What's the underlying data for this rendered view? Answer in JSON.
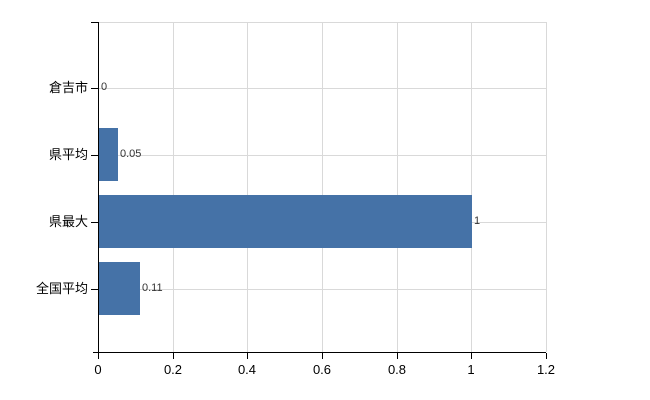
{
  "chart_data": {
    "type": "bar",
    "orientation": "horizontal",
    "title": "",
    "categories": [
      "倉吉市",
      "県平均",
      "県最大",
      "全国平均"
    ],
    "values": [
      0,
      0.05,
      1,
      0.11
    ],
    "value_labels": [
      "0",
      "0.05",
      "1",
      "0.11"
    ],
    "xlim": [
      0,
      1.2
    ],
    "x_ticks": [
      0,
      0.2,
      0.4,
      0.6,
      0.8,
      1,
      1.2
    ],
    "x_tick_labels": [
      "0",
      "0.2",
      "0.4",
      "0.6",
      "0.8",
      "1",
      "1.2"
    ],
    "grid": true,
    "legend": false,
    "colors": {
      "bar": "#4572a7",
      "grid": "#d9d9d9",
      "axis": "#000000",
      "plot_border": "#d9d9d9",
      "category_text": "#000000",
      "value_text": "#333333",
      "background": "#ffffff"
    }
  }
}
